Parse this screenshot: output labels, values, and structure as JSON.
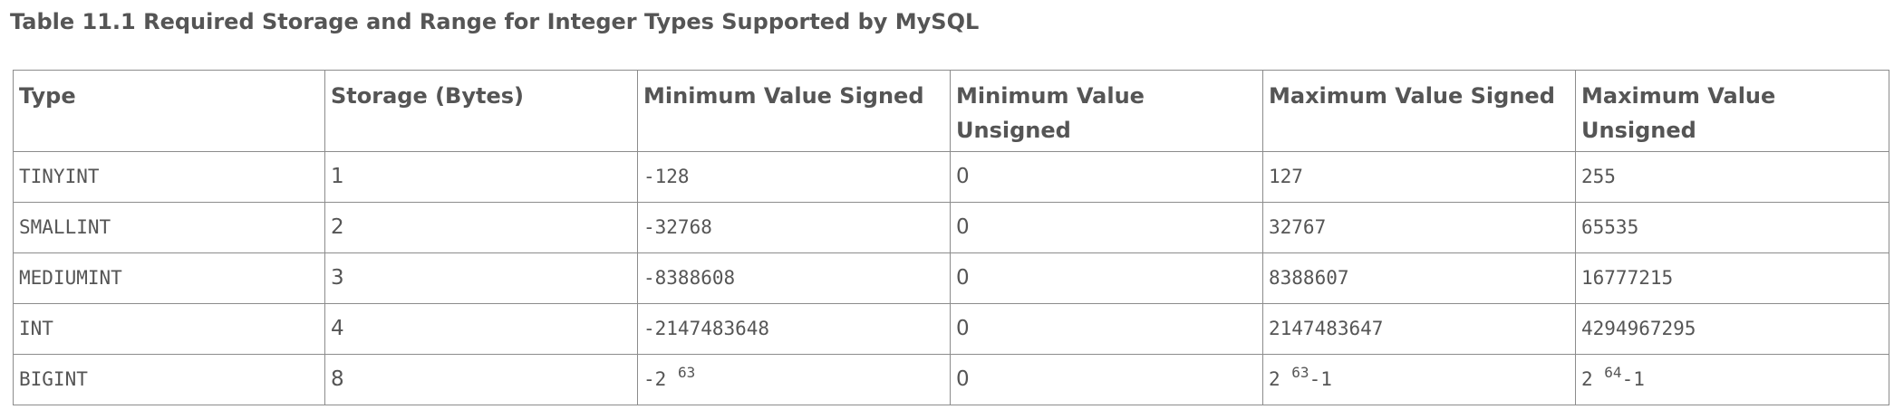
{
  "caption": "Table 11.1 Required Storage and Range for Integer Types Supported by MySQL",
  "table": {
    "headers": [
      "Type",
      "Storage (Bytes)",
      "Minimum Value Signed",
      "Minimum Value Unsigned",
      "Maximum Value Signed",
      "Maximum Value Unsigned"
    ],
    "rows": [
      {
        "type": "TINYINT",
        "storage": "1",
        "min_signed": "-128",
        "min_unsigned": "0",
        "max_signed": "127",
        "max_unsigned": "255"
      },
      {
        "type": "SMALLINT",
        "storage": "2",
        "min_signed": "-32768",
        "min_unsigned": "0",
        "max_signed": "32767",
        "max_unsigned": "65535"
      },
      {
        "type": "MEDIUMINT",
        "storage": "3",
        "min_signed": "-8388608",
        "min_unsigned": "0",
        "max_signed": "8388607",
        "max_unsigned": "16777215"
      },
      {
        "type": "INT",
        "storage": "4",
        "min_signed": "-2147483648",
        "min_unsigned": "0",
        "max_signed": "2147483647",
        "max_unsigned": "4294967295"
      }
    ],
    "bigint": {
      "type": "BIGINT",
      "storage": "8",
      "min_signed": {
        "base": "-2 ",
        "exp": "63",
        "suffix": ""
      },
      "min_unsigned": "0",
      "max_signed": {
        "base": "2 ",
        "exp": "63",
        "suffix": "-1"
      },
      "max_unsigned": {
        "base": "2 ",
        "exp": "64",
        "suffix": "-1"
      }
    }
  }
}
